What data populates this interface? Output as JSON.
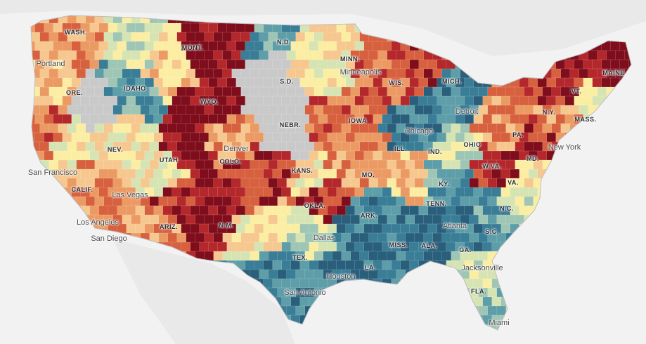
{
  "map": {
    "colors": {
      "background": "#f2f2f2",
      "land": "#e4e4e4",
      "no_data": "#c9c9c9",
      "scale": [
        "#7f0d1c",
        "#b4282c",
        "#d7603f",
        "#ec9a63",
        "#f6c78e",
        "#fbeea3",
        "#d6e4b3",
        "#9fc6b4",
        "#5e9ea8",
        "#3a7d97",
        "#2a5f7c"
      ]
    },
    "state_labels": [
      {
        "id": "wash",
        "text": "WASH."
      },
      {
        "id": "mont",
        "text": "MONT."
      },
      {
        "id": "nd",
        "text": "N.D."
      },
      {
        "id": "minn",
        "text": "MINN."
      },
      {
        "id": "maine",
        "text": "MAINE"
      },
      {
        "id": "ore",
        "text": "ORE."
      },
      {
        "id": "idaho",
        "text": "IDAHO"
      },
      {
        "id": "sd",
        "text": "S.D."
      },
      {
        "id": "wis",
        "text": "WIS."
      },
      {
        "id": "mich",
        "text": "MICH."
      },
      {
        "id": "vt",
        "text": "VT."
      },
      {
        "id": "wyo",
        "text": "WYO."
      },
      {
        "id": "ny",
        "text": "N.Y."
      },
      {
        "id": "mass",
        "text": "MASS."
      },
      {
        "id": "nebr",
        "text": "NEBR."
      },
      {
        "id": "iowa",
        "text": "IOWA"
      },
      {
        "id": "nev",
        "text": "NEV."
      },
      {
        "id": "pa",
        "text": "PA."
      },
      {
        "id": "ohio",
        "text": "OHIO"
      },
      {
        "id": "ill",
        "text": "ILL."
      },
      {
        "id": "ind",
        "text": "IND."
      },
      {
        "id": "utah",
        "text": "UTAH"
      },
      {
        "id": "colo",
        "text": "COLO."
      },
      {
        "id": "md",
        "text": "MD."
      },
      {
        "id": "kans",
        "text": "KANS."
      },
      {
        "id": "mo",
        "text": "MO."
      },
      {
        "id": "wva",
        "text": "W.VA."
      },
      {
        "id": "va",
        "text": "VA."
      },
      {
        "id": "calif",
        "text": "CALIF."
      },
      {
        "id": "ky",
        "text": "KY."
      },
      {
        "id": "okla",
        "text": "OKLA."
      },
      {
        "id": "tenn",
        "text": "TENN."
      },
      {
        "id": "nc",
        "text": "N.C."
      },
      {
        "id": "ark",
        "text": "ARK."
      },
      {
        "id": "ariz",
        "text": "ARIZ."
      },
      {
        "id": "nm",
        "text": "N.M."
      },
      {
        "id": "sc",
        "text": "S.C."
      },
      {
        "id": "miss",
        "text": "MISS."
      },
      {
        "id": "ala",
        "text": "ALA."
      },
      {
        "id": "ga",
        "text": "GA."
      },
      {
        "id": "tex",
        "text": "TEX."
      },
      {
        "id": "la",
        "text": "LA."
      },
      {
        "id": "fla",
        "text": "FLA."
      }
    ],
    "city_labels": [
      {
        "id": "portland",
        "text": "Portland"
      },
      {
        "id": "minneapolis",
        "text": "Minneapolis"
      },
      {
        "id": "detroit",
        "text": "Detroit"
      },
      {
        "id": "chicago",
        "text": "Chicago"
      },
      {
        "id": "newyork",
        "text": "New York"
      },
      {
        "id": "denver",
        "text": "Denver"
      },
      {
        "id": "sanfrancisco",
        "text": "San Francisco"
      },
      {
        "id": "lasvegas",
        "text": "Las Vegas"
      },
      {
        "id": "losangeles",
        "text": "Los Angeles"
      },
      {
        "id": "sandiego",
        "text": "San Diego"
      },
      {
        "id": "atlanta",
        "text": "Atlanta"
      },
      {
        "id": "dallas",
        "text": "Dallas"
      },
      {
        "id": "houston",
        "text": "Houston"
      },
      {
        "id": "sanantonio",
        "text": "San Antonio"
      },
      {
        "id": "jacksonville",
        "text": "Jacksonville"
      },
      {
        "id": "miami",
        "text": "Miami"
      }
    ]
  }
}
